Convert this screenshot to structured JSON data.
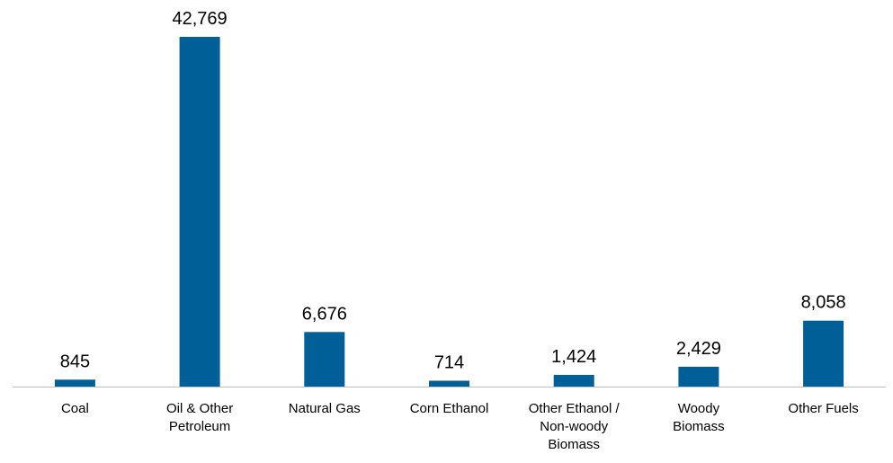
{
  "chart_data": {
    "type": "bar",
    "title": "",
    "xlabel": "",
    "ylabel": "",
    "categories": [
      [
        "Coal"
      ],
      [
        "Oil & Other",
        "Petroleum"
      ],
      [
        "Natural Gas"
      ],
      [
        "Corn Ethanol"
      ],
      [
        "Other Ethanol /",
        "Non-woody",
        "Biomass"
      ],
      [
        "Woody",
        "Biomass"
      ],
      [
        "Other Fuels"
      ]
    ],
    "values": [
      845,
      42769,
      6676,
      714,
      1424,
      2429,
      8058
    ],
    "value_labels": [
      "845",
      "42,769",
      "6,676",
      "714",
      "1,424",
      "2,429",
      "8,058"
    ],
    "ylim": [
      0,
      42769
    ],
    "grid": false,
    "legend": "none",
    "colors": {
      "bar": "#005f96",
      "axis": "#bfbfbf"
    }
  }
}
